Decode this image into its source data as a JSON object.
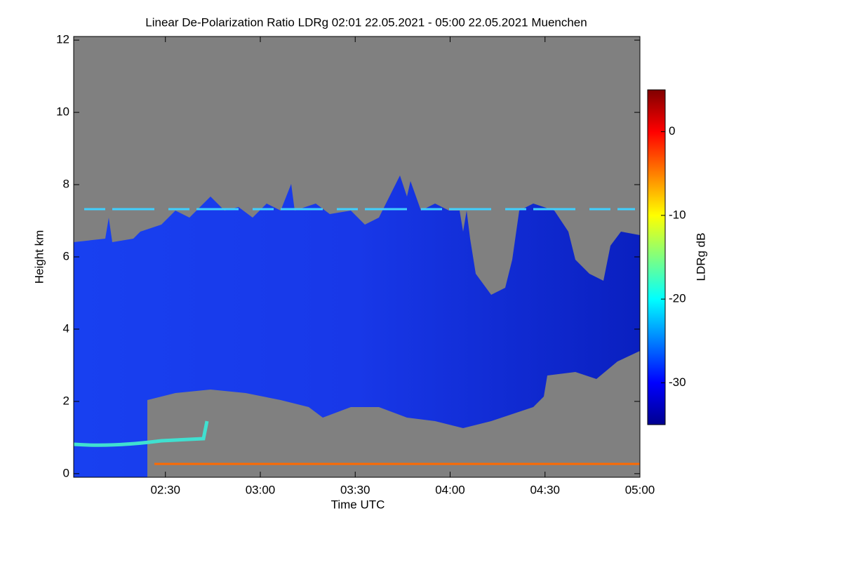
{
  "chart_data": {
    "type": "heatmap",
    "title": "Linear De-Polarization Ratio LDRg   02:01 22.05.2021 - 05:00 22.05.2021 Muenchen",
    "x_label": "Time UTC",
    "y_label": "Height km",
    "colorbar_label": "LDRg dB",
    "xlim": [
      2.0167,
      5.0
    ],
    "xticks": [
      {
        "value": 2.5,
        "label": "02:30"
      },
      {
        "value": 3.0,
        "label": "03:00"
      },
      {
        "value": 3.5,
        "label": "03:30"
      },
      {
        "value": 4.0,
        "label": "04:00"
      },
      {
        "value": 4.5,
        "label": "04:30"
      },
      {
        "value": 5.0,
        "label": "05:00"
      }
    ],
    "ylim": [
      -0.1,
      12.1
    ],
    "yticks": [
      0,
      2,
      4,
      6,
      8,
      10,
      12
    ],
    "clim": [
      -35,
      5
    ],
    "cticks": [
      0,
      -10,
      -20,
      -30
    ],
    "colormap": "jet"
  }
}
